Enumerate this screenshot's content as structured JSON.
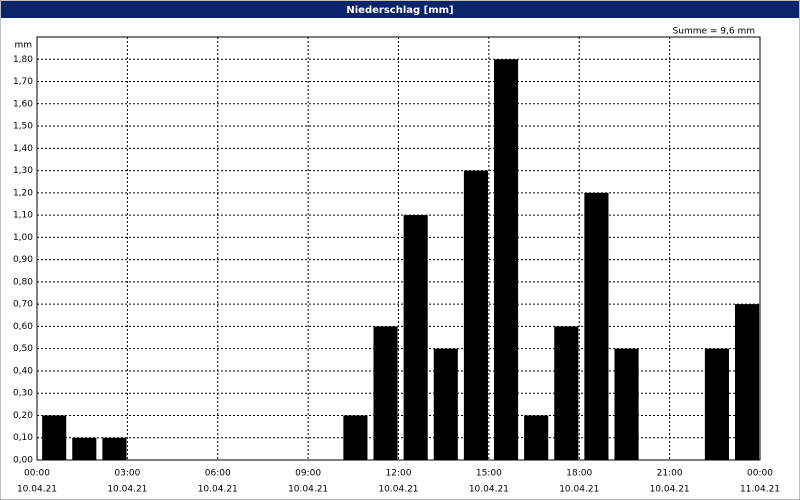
{
  "chart_data": {
    "type": "bar",
    "title": "Niederschlag [mm]",
    "ylabel": "mm",
    "annotation": "Summe = 9,6 mm",
    "x": [
      0,
      1,
      2,
      3,
      4,
      5,
      6,
      7,
      8,
      9,
      10,
      11,
      12,
      13,
      14,
      15,
      16,
      17,
      18,
      19,
      20,
      21,
      22,
      23
    ],
    "values": [
      0.2,
      0.1,
      0.1,
      0,
      0,
      0,
      0,
      0,
      0,
      0,
      0.2,
      0.6,
      1.1,
      0.5,
      1.3,
      1.8,
      0.2,
      0.6,
      1.2,
      0.5,
      0,
      0,
      0.5,
      0.7
    ],
    "color": "#000000",
    "xlim": [
      0,
      24
    ],
    "xticks": [
      {
        "value": 0,
        "label": "00:00"
      },
      {
        "value": 3,
        "label": "03:00"
      },
      {
        "value": 6,
        "label": "06:00"
      },
      {
        "value": 9,
        "label": "09:00"
      },
      {
        "value": 12,
        "label": "12:00"
      },
      {
        "value": 15,
        "label": "15:00"
      },
      {
        "value": 18,
        "label": "18:00"
      },
      {
        "value": 21,
        "label": "21:00"
      },
      {
        "value": 24,
        "label": "00:00"
      }
    ],
    "xtick_dates": [
      "10.04.21",
      "10.04.21",
      "10.04.21",
      "10.04.21",
      "10.04.21",
      "10.04.21",
      "10.04.21",
      "10.04.21",
      "11.04.21"
    ],
    "ylim": [
      0,
      1.9
    ],
    "yticks": [
      {
        "value": 0,
        "label": "0,00"
      },
      {
        "value": 0.1,
        "label": "0,10"
      },
      {
        "value": 0.2,
        "label": "0,20"
      },
      {
        "value": 0.3,
        "label": "0,30"
      },
      {
        "value": 0.4,
        "label": "0,40"
      },
      {
        "value": 0.5,
        "label": "0,50"
      },
      {
        "value": 0.6,
        "label": "0,60"
      },
      {
        "value": 0.7,
        "label": "0,70"
      },
      {
        "value": 0.8,
        "label": "0,80"
      },
      {
        "value": 0.9,
        "label": "0,90"
      },
      {
        "value": 1.0,
        "label": "1,00"
      },
      {
        "value": 1.1,
        "label": "1,10"
      },
      {
        "value": 1.2,
        "label": "1,20"
      },
      {
        "value": 1.3,
        "label": "1,30"
      },
      {
        "value": 1.4,
        "label": "1,40"
      },
      {
        "value": 1.5,
        "label": "1,50"
      },
      {
        "value": 1.6,
        "label": "1,60"
      },
      {
        "value": 1.7,
        "label": "1,70"
      },
      {
        "value": 1.8,
        "label": "1,80"
      }
    ],
    "grid": true
  }
}
